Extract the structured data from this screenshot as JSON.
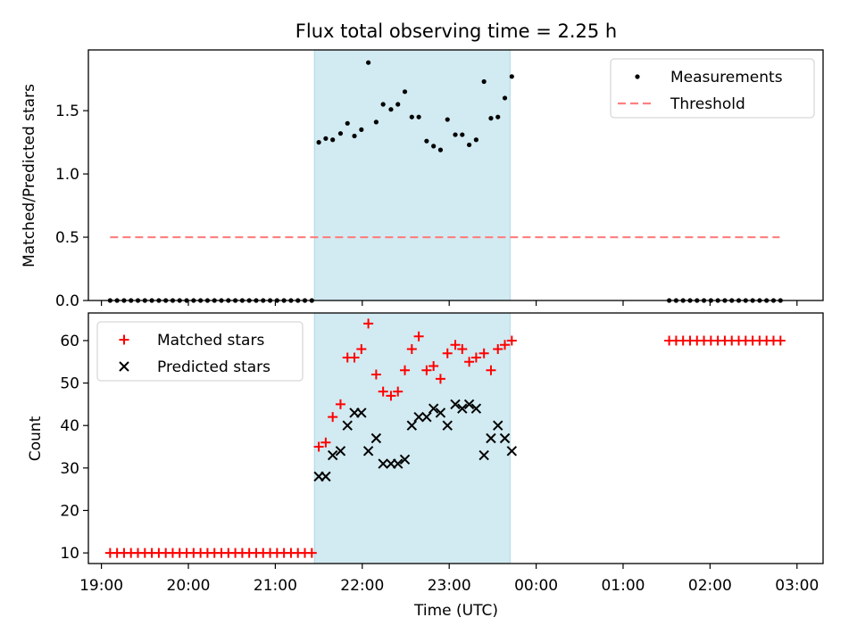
{
  "title": "Flux total observing time = 2.25 h",
  "colors": {
    "measurement": "#000000",
    "threshold": "#ff8080",
    "matched": "#ff0000",
    "predicted": "#000000",
    "shade": "#add8e6"
  },
  "chart_data": [
    {
      "type": "scatter",
      "ylabel": "Matched/Predicted stars",
      "xlim": [
        18.85,
        27.3
      ],
      "ylim": [
        0,
        1.98
      ],
      "yticks": [
        "0.0",
        "0.5",
        "1.0",
        "1.5"
      ],
      "shade": [
        21.45,
        23.7
      ],
      "legend": {
        "placement": "top-right",
        "entries": [
          "Measurements",
          "Threshold"
        ]
      },
      "threshold": {
        "name": "Threshold",
        "value": 0.5,
        "x": [
          19.1,
          26.8
        ]
      },
      "series": [
        {
          "name": "Measurements",
          "marker": "dot",
          "points": [
            [
              19.1,
              0
            ],
            [
              19.18,
              0
            ],
            [
              19.26,
              0
            ],
            [
              19.34,
              0
            ],
            [
              19.42,
              0
            ],
            [
              19.5,
              0
            ],
            [
              19.58,
              0
            ],
            [
              19.66,
              0
            ],
            [
              19.74,
              0
            ],
            [
              19.82,
              0
            ],
            [
              19.9,
              0
            ],
            [
              19.98,
              0
            ],
            [
              20.06,
              0
            ],
            [
              20.14,
              0
            ],
            [
              20.22,
              0
            ],
            [
              20.3,
              0
            ],
            [
              20.38,
              0
            ],
            [
              20.46,
              0
            ],
            [
              20.54,
              0
            ],
            [
              20.62,
              0
            ],
            [
              20.7,
              0
            ],
            [
              20.78,
              0
            ],
            [
              20.86,
              0
            ],
            [
              20.94,
              0
            ],
            [
              21.02,
              0
            ],
            [
              21.1,
              0
            ],
            [
              21.18,
              0
            ],
            [
              21.26,
              0
            ],
            [
              21.34,
              0
            ],
            [
              21.42,
              0
            ],
            [
              21.5,
              1.25
            ],
            [
              21.58,
              1.28
            ],
            [
              21.66,
              1.27
            ],
            [
              21.75,
              1.32
            ],
            [
              21.83,
              1.4
            ],
            [
              21.91,
              1.3
            ],
            [
              21.99,
              1.35
            ],
            [
              22.07,
              1.88
            ],
            [
              22.16,
              1.41
            ],
            [
              22.24,
              1.55
            ],
            [
              22.33,
              1.51
            ],
            [
              22.41,
              1.55
            ],
            [
              22.49,
              1.65
            ],
            [
              22.57,
              1.45
            ],
            [
              22.65,
              1.45
            ],
            [
              22.74,
              1.26
            ],
            [
              22.82,
              1.22
            ],
            [
              22.9,
              1.19
            ],
            [
              22.98,
              1.43
            ],
            [
              23.07,
              1.31
            ],
            [
              23.15,
              1.31
            ],
            [
              23.23,
              1.23
            ],
            [
              23.31,
              1.27
            ],
            [
              23.4,
              1.73
            ],
            [
              23.48,
              1.44
            ],
            [
              23.56,
              1.45
            ],
            [
              23.64,
              1.6
            ],
            [
              23.72,
              1.77
            ],
            [
              25.53,
              0
            ],
            [
              25.61,
              0
            ],
            [
              25.69,
              0
            ],
            [
              25.77,
              0
            ],
            [
              25.85,
              0
            ],
            [
              25.93,
              0
            ],
            [
              26.01,
              0
            ],
            [
              26.09,
              0
            ],
            [
              26.17,
              0
            ],
            [
              26.25,
              0
            ],
            [
              26.33,
              0
            ],
            [
              26.41,
              0
            ],
            [
              26.49,
              0
            ],
            [
              26.57,
              0
            ],
            [
              26.65,
              0
            ],
            [
              26.73,
              0
            ],
            [
              26.81,
              0
            ]
          ]
        }
      ]
    },
    {
      "type": "scatter",
      "ylabel": "Count",
      "xlabel": "Time (UTC)",
      "xlim": [
        18.85,
        27.3
      ],
      "ylim": [
        7.5,
        66.5
      ],
      "yticks": [
        "10",
        "20",
        "30",
        "40",
        "50",
        "60"
      ],
      "xticks": [
        {
          "value": 19,
          "label": "19:00"
        },
        {
          "value": 20,
          "label": "20:00"
        },
        {
          "value": 21,
          "label": "21:00"
        },
        {
          "value": 22,
          "label": "22:00"
        },
        {
          "value": 23,
          "label": "23:00"
        },
        {
          "value": 24,
          "label": "00:00"
        },
        {
          "value": 25,
          "label": "01:00"
        },
        {
          "value": 26,
          "label": "02:00"
        },
        {
          "value": 27,
          "label": "03:00"
        }
      ],
      "shade": [
        21.45,
        23.7
      ],
      "legend": {
        "placement": "top-left",
        "entries": [
          "Matched stars",
          "Predicted stars"
        ]
      },
      "series": [
        {
          "name": "Matched stars",
          "marker": "plus",
          "points": [
            [
              19.1,
              10
            ],
            [
              19.18,
              10
            ],
            [
              19.26,
              10
            ],
            [
              19.34,
              10
            ],
            [
              19.42,
              10
            ],
            [
              19.5,
              10
            ],
            [
              19.58,
              10
            ],
            [
              19.66,
              10
            ],
            [
              19.74,
              10
            ],
            [
              19.82,
              10
            ],
            [
              19.9,
              10
            ],
            [
              19.98,
              10
            ],
            [
              20.06,
              10
            ],
            [
              20.14,
              10
            ],
            [
              20.22,
              10
            ],
            [
              20.3,
              10
            ],
            [
              20.38,
              10
            ],
            [
              20.46,
              10
            ],
            [
              20.54,
              10
            ],
            [
              20.62,
              10
            ],
            [
              20.7,
              10
            ],
            [
              20.78,
              10
            ],
            [
              20.86,
              10
            ],
            [
              20.94,
              10
            ],
            [
              21.02,
              10
            ],
            [
              21.1,
              10
            ],
            [
              21.18,
              10
            ],
            [
              21.26,
              10
            ],
            [
              21.34,
              10
            ],
            [
              21.42,
              10
            ],
            [
              21.5,
              35
            ],
            [
              21.58,
              36
            ],
            [
              21.66,
              42
            ],
            [
              21.75,
              45
            ],
            [
              21.83,
              56
            ],
            [
              21.91,
              56
            ],
            [
              21.99,
              58
            ],
            [
              22.07,
              64
            ],
            [
              22.16,
              52
            ],
            [
              22.24,
              48
            ],
            [
              22.33,
              47
            ],
            [
              22.41,
              48
            ],
            [
              22.49,
              53
            ],
            [
              22.57,
              58
            ],
            [
              22.65,
              61
            ],
            [
              22.74,
              53
            ],
            [
              22.82,
              54
            ],
            [
              22.9,
              51
            ],
            [
              22.98,
              57
            ],
            [
              23.07,
              59
            ],
            [
              23.15,
              58
            ],
            [
              23.23,
              55
            ],
            [
              23.31,
              56
            ],
            [
              23.4,
              57
            ],
            [
              23.48,
              53
            ],
            [
              23.56,
              58
            ],
            [
              23.64,
              59
            ],
            [
              23.72,
              60
            ],
            [
              25.53,
              60
            ],
            [
              25.61,
              60
            ],
            [
              25.69,
              60
            ],
            [
              25.77,
              60
            ],
            [
              25.85,
              60
            ],
            [
              25.93,
              60
            ],
            [
              26.01,
              60
            ],
            [
              26.09,
              60
            ],
            [
              26.17,
              60
            ],
            [
              26.25,
              60
            ],
            [
              26.33,
              60
            ],
            [
              26.41,
              60
            ],
            [
              26.49,
              60
            ],
            [
              26.57,
              60
            ],
            [
              26.65,
              60
            ],
            [
              26.73,
              60
            ],
            [
              26.81,
              60
            ]
          ]
        },
        {
          "name": "Predicted stars",
          "marker": "x",
          "points": [
            [
              21.5,
              28
            ],
            [
              21.58,
              28
            ],
            [
              21.66,
              33
            ],
            [
              21.75,
              34
            ],
            [
              21.83,
              40
            ],
            [
              21.91,
              43
            ],
            [
              21.99,
              43
            ],
            [
              22.07,
              34
            ],
            [
              22.16,
              37
            ],
            [
              22.24,
              31
            ],
            [
              22.33,
              31
            ],
            [
              22.41,
              31
            ],
            [
              22.49,
              32
            ],
            [
              22.57,
              40
            ],
            [
              22.65,
              42
            ],
            [
              22.74,
              42
            ],
            [
              22.82,
              44
            ],
            [
              22.9,
              43
            ],
            [
              22.98,
              40
            ],
            [
              23.07,
              45
            ],
            [
              23.15,
              44
            ],
            [
              23.23,
              45
            ],
            [
              23.31,
              44
            ],
            [
              23.4,
              33
            ],
            [
              23.48,
              37
            ],
            [
              23.56,
              40
            ],
            [
              23.64,
              37
            ],
            [
              23.72,
              34
            ]
          ]
        }
      ]
    }
  ]
}
